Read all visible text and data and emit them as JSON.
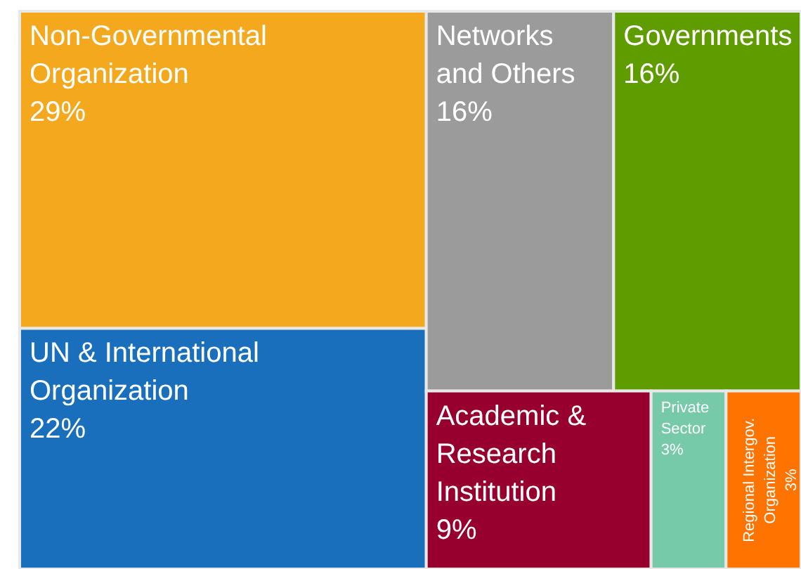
{
  "chart_data": {
    "type": "other",
    "categories": [
      "Non-Governmental Organization",
      "UN & International Organization",
      "Networks and Others",
      "Governments",
      "Academic & Research Institution",
      "Private Sector",
      "Regional Intergov. Organization"
    ],
    "values": [
      29,
      22,
      16,
      16,
      9,
      3,
      3
    ],
    "value_labels": [
      "29%",
      "22%",
      "16%",
      "16%",
      "9%",
      "3%",
      "3%"
    ],
    "colors": [
      "#f4a81d",
      "#1a6fbd",
      "#9b9b9b",
      "#5f9c00",
      "#97002e",
      "#76c9a9",
      "#ff7300"
    ]
  }
}
